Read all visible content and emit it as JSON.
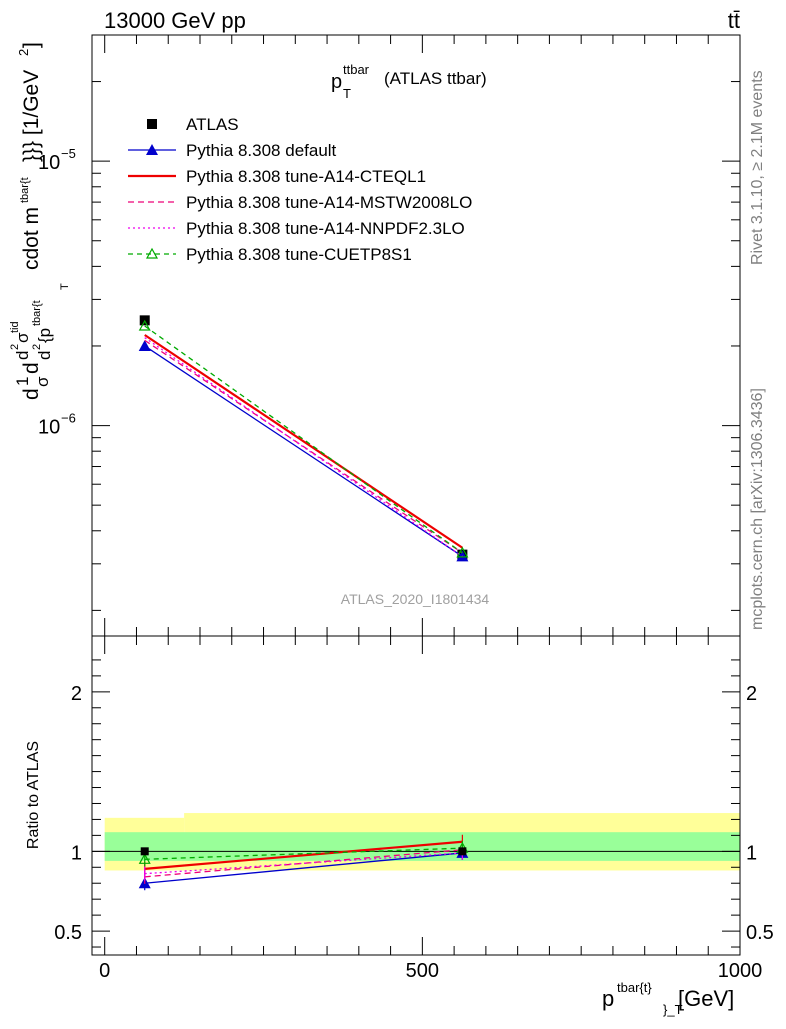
{
  "header": {
    "energy_label": "13000 GeV pp",
    "process_label": "tt̄"
  },
  "side_labels": {
    "rivet": "Rivet 3.1.10, ≥ 2.1M events",
    "mcplots": "mcplots.cern.ch [arXiv:1306.3436]"
  },
  "chart_data": [
    {
      "type": "line",
      "title_main": "p",
      "title_sup": "ttbar",
      "title_sub": "T",
      "title_suffix": "(ATLAS ttbar)",
      "analysis_label": "ATLAS_2020_I1801434",
      "ylabel": "d1/σ d d²σ^{tid} / d² {p^{tbar{t}}_T cdot m^{tbar{t}}}} [1/GeV²]",
      "ylabel_parts": [
        "d",
        "1",
        "σ",
        "d",
        "d",
        "2",
        "σ",
        "tid",
        "d",
        "2",
        "{p",
        "tbar{t",
        "T",
        "cdot m",
        "tbar{t",
        "}}} [1/GeV",
        "2",
        "]"
      ],
      "yscale": "log",
      "ylim": [
        1.6e-07,
        3e-05
      ],
      "xlim": [
        -20,
        1000
      ],
      "y_tick_labels": [
        {
          "value": 1e-05,
          "base": "10",
          "exp": "−5"
        },
        {
          "value": 1e-06,
          "base": "10",
          "exp": "−6"
        }
      ],
      "legend_position": "top-left",
      "x": [
        63,
        563
      ],
      "series": [
        {
          "name": "ATLAS",
          "values": [
            2.5e-06,
            3.25e-07
          ],
          "color": "#000000",
          "marker": "square",
          "dash": "none"
        },
        {
          "name": "Pythia 8.308 default",
          "values": [
            2e-06,
            3.2e-07
          ],
          "color": "#0000cc",
          "marker": "triangle",
          "dash": "none"
        },
        {
          "name": "Pythia 8.308 tune-A14-CTEQL1",
          "values": [
            2.2e-06,
            3.45e-07
          ],
          "color": "#ee0000",
          "marker": "none",
          "dash": "none"
        },
        {
          "name": "Pythia 8.308 tune-A14-MSTW2008LO",
          "values": [
            2.1e-06,
            3.3e-07
          ],
          "color": "#ee0077",
          "marker": "none",
          "dash": "6,4"
        },
        {
          "name": "Pythia 8.308 tune-A14-NNPDF2.3LO",
          "values": [
            2.15e-06,
            3.2e-07
          ],
          "color": "#ee00ee",
          "marker": "none",
          "dash": "2,3"
        },
        {
          "name": "Pythia 8.308 tune-CUETP8S1",
          "values": [
            2.38e-06,
            3.3e-07
          ],
          "color": "#00aa00",
          "marker": "open-triangle",
          "dash": "5,4"
        }
      ]
    },
    {
      "type": "line",
      "ylabel": "Ratio to ATLAS",
      "xlabel": "p^{tbar{t}}_T [GeV]",
      "xlabel_main": "p",
      "xlabel_sup": "tbar{t}",
      "xlabel_sub": "}_T",
      "xlabel_unit": " [GeV]",
      "ylim": [
        0.35,
        2.35
      ],
      "xlim": [
        -20,
        1000
      ],
      "y_tick_labels": [
        "0.5",
        "1",
        "2"
      ],
      "x_tick_labels": [
        "0",
        "500",
        "1000"
      ],
      "reference_line": 1,
      "bands": [
        {
          "name": "total uncertainty",
          "color": "#ffff99",
          "bins": [
            {
              "x0": 0,
              "x1": 125,
              "lo": 0.88,
              "hi": 1.21
            },
            {
              "x0": 125,
              "x1": 1000,
              "lo": 0.88,
              "hi": 1.24
            }
          ]
        },
        {
          "name": "stat uncertainty",
          "color": "#99ff99",
          "bins": [
            {
              "x0": 0,
              "x1": 1000,
              "lo": 0.94,
              "hi": 1.12
            }
          ]
        }
      ],
      "x": [
        63,
        563
      ],
      "series": [
        {
          "name": "Pythia 8.308 default",
          "values": [
            0.8,
            0.99
          ],
          "color": "#0000cc",
          "marker": "triangle",
          "dash": "none"
        },
        {
          "name": "Pythia 8.308 tune-A14-CTEQL1",
          "values": [
            0.89,
            1.06
          ],
          "color": "#ee0000",
          "marker": "none",
          "dash": "none"
        },
        {
          "name": "Pythia 8.308 tune-A14-MSTW2008LO",
          "values": [
            0.84,
            1.01
          ],
          "color": "#ee0077",
          "marker": "none",
          "dash": "6,4"
        },
        {
          "name": "Pythia 8.308 tune-A14-NNPDF2.3LO",
          "values": [
            0.86,
            0.99
          ],
          "color": "#ee00ee",
          "marker": "none",
          "dash": "2,3"
        },
        {
          "name": "Pythia 8.308 tune-CUETP8S1",
          "values": [
            0.95,
            1.02
          ],
          "color": "#00aa00",
          "marker": "open-triangle",
          "dash": "5,4"
        }
      ]
    }
  ]
}
